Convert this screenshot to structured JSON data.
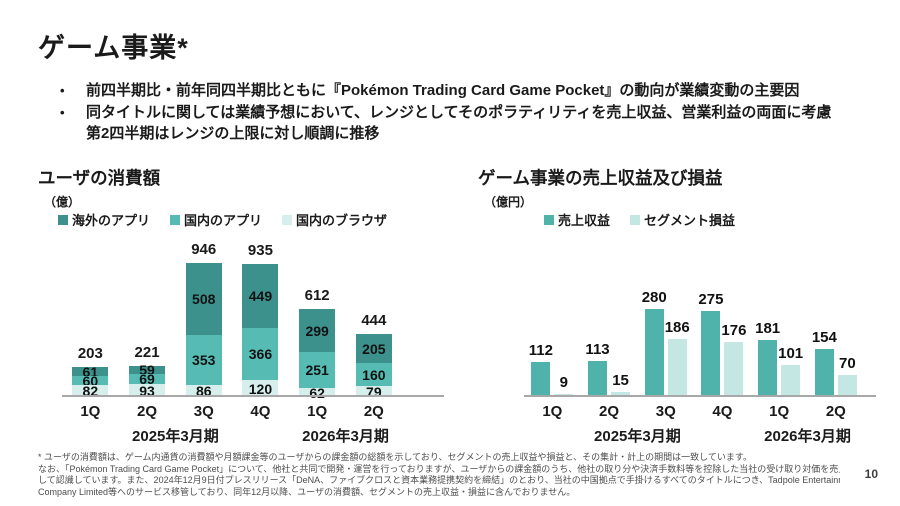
{
  "slide": {
    "title": "ゲーム事業*",
    "bullets": [
      {
        "lines": [
          "前四半期比・前年同四半期比ともに『Pokémon Trading Card Game Pocket』の動向が業績変動の主要因"
        ]
      },
      {
        "lines": [
          "同タイトルに関しては業績予想において、レンジとしてそのポラティリティを売上収益、営業利益の両面に考慮",
          "第2四半期はレンジの上限に対し順調に推移"
        ]
      }
    ],
    "page_number": "10"
  },
  "footnote": {
    "lines": [
      "* ユーザの消費額は、ゲーム内通貨の消費額や月額課金等のユーザからの課金額の総額を示しており、セグメントの売上収益や損益と、その集計・計上の期間は一致しています。",
      "なお、「Pokémon Trading Card Game Pocket」について、他社と共同で開発・運営を行っておりますが、ユーザからの課金額のうち、他社の取り分や決済手数料等を控除した当社の受け取り対価を売上収益と",
      "して認識しています。また、2024年12月9日付プレスリリース「DeNA、ファイブクロスと資本業務提携契約を締結」のとおり、当社の中国拠点で手掛けるすべてのタイトルにつき、Tadpole Entertainment",
      "Company Limited等へのサービス移管しており、同年12月以降、ユーザの消費額、セグメントの売上収益・損益に含んでおりません。"
    ]
  },
  "chart_data": [
    {
      "type": "bar",
      "stacked": true,
      "title": "ユーザの消費額",
      "unit": "（億）",
      "categories": [
        "1Q",
        "2Q",
        "3Q",
        "4Q",
        "1Q",
        "2Q"
      ],
      "series": [
        {
          "name": "海外のアプリ",
          "color": "#3d918d",
          "values": [
            61,
            59,
            508,
            449,
            299,
            205
          ]
        },
        {
          "name": "国内のアプリ",
          "color": "#56bcb3",
          "values": [
            60,
            69,
            353,
            366,
            251,
            160
          ]
        },
        {
          "name": "国内のブラウザ",
          "color": "#d6efec",
          "values": [
            82,
            93,
            86,
            120,
            62,
            79
          ]
        }
      ],
      "totals": [
        203,
        221,
        946,
        935,
        612,
        444
      ],
      "period_labels": [
        {
          "label": "2025年3月期",
          "from": 0,
          "to": 3
        },
        {
          "label": "2026年3月期",
          "from": 4,
          "to": 5
        }
      ],
      "ylim": [
        0,
        946
      ],
      "legend_position": "top",
      "grid": false
    },
    {
      "type": "bar",
      "stacked": false,
      "title": "ゲーム事業の売上収益及び損益",
      "unit": "（億円）",
      "categories": [
        "1Q",
        "2Q",
        "3Q",
        "4Q",
        "1Q",
        "2Q"
      ],
      "series": [
        {
          "name": "売上収益",
          "color": "#4fb3ab",
          "values": [
            112,
            113,
            280,
            275,
            181,
            154
          ]
        },
        {
          "name": "セグメント損益",
          "color": "#c5e7e4",
          "values": [
            9,
            15,
            186,
            176,
            101,
            70
          ]
        }
      ],
      "period_labels": [
        {
          "label": "2025年3月期",
          "from": 0,
          "to": 3
        },
        {
          "label": "2026年3月期",
          "from": 4,
          "to": 5
        }
      ],
      "ylim": [
        0,
        280
      ],
      "legend_position": "top",
      "grid": false
    }
  ]
}
